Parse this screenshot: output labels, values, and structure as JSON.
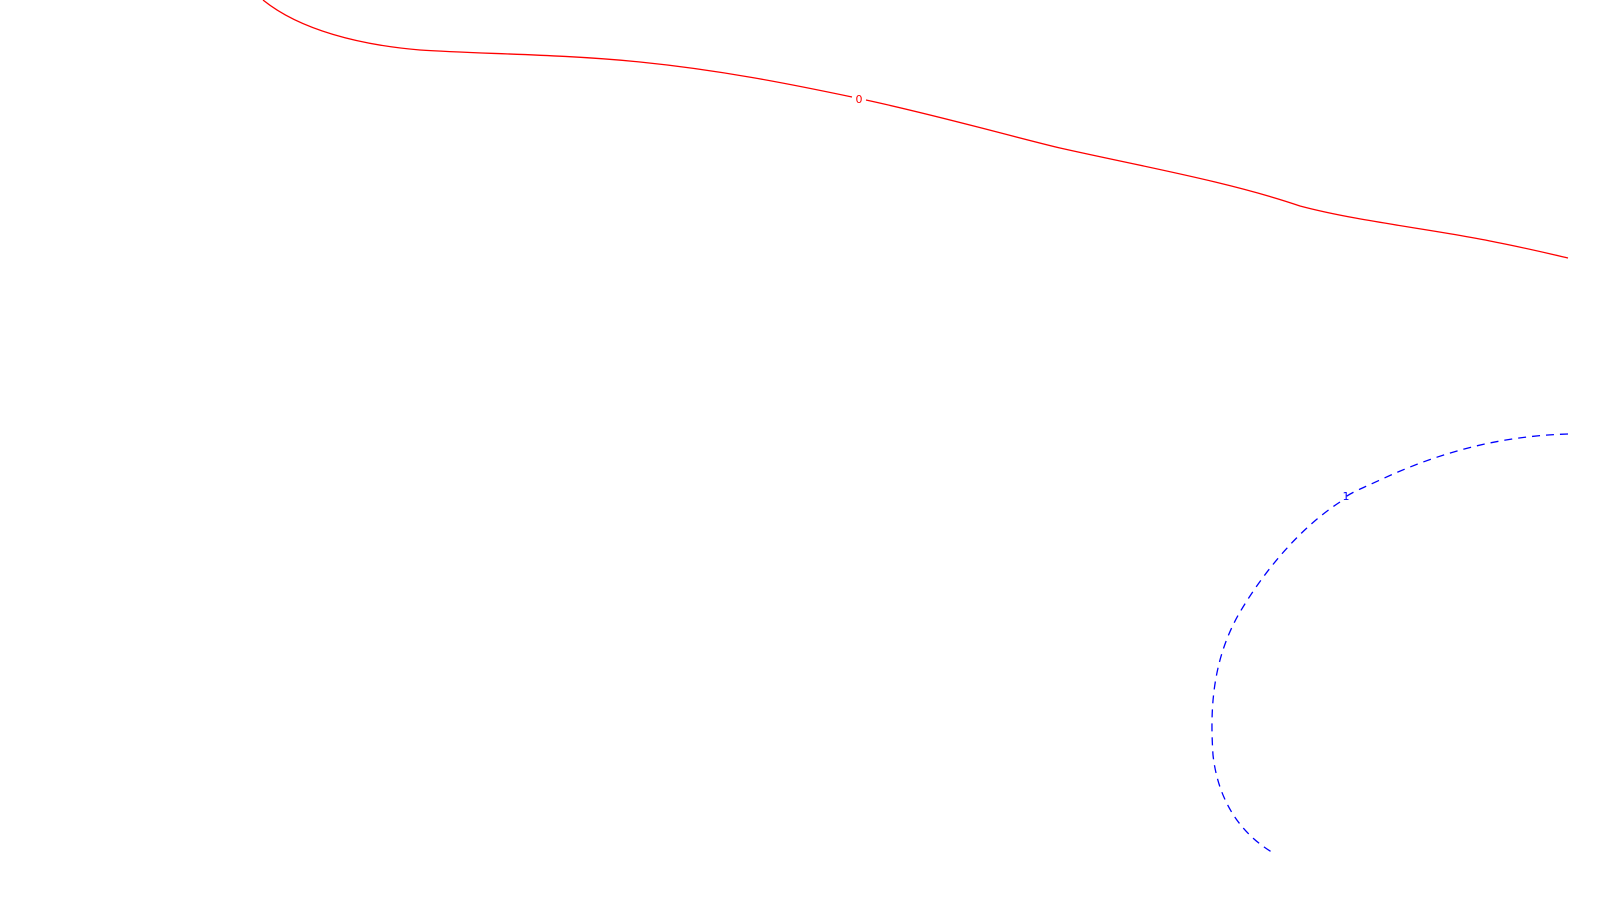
{
  "contours": [
    {
      "label": "0",
      "color": "#ff0000",
      "style": "solid"
    },
    {
      "label": "1",
      "color": "#0000ff",
      "style": "dashed"
    }
  ]
}
